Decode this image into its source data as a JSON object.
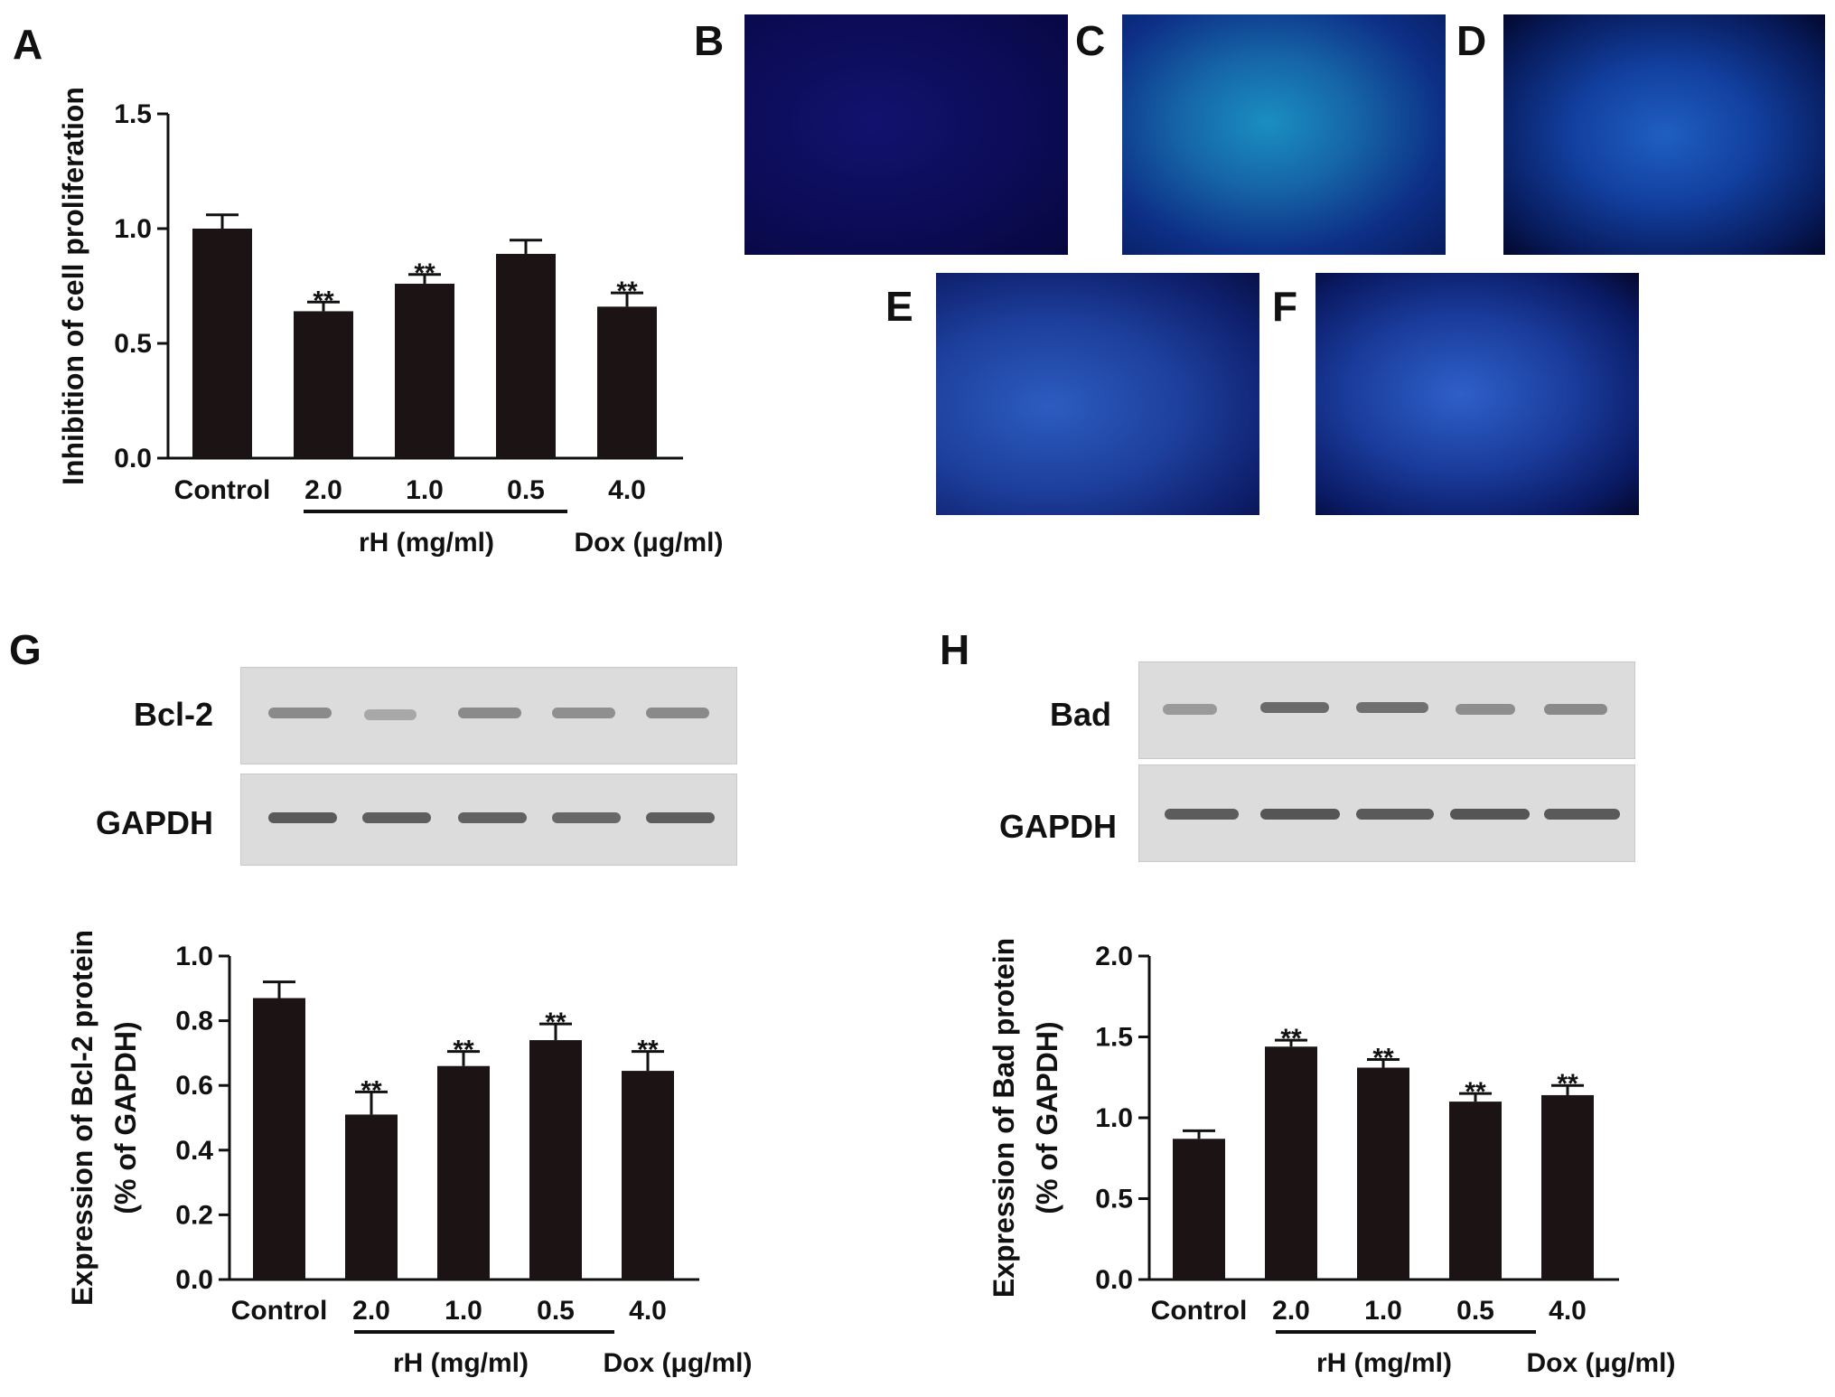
{
  "panel_letters": [
    "A",
    "B",
    "C",
    "D",
    "E",
    "F",
    "G",
    "H"
  ],
  "blots": {
    "G": {
      "top_label": "Bcl-2",
      "bottom_label": "GAPDH"
    },
    "H": {
      "top_label": "Bad",
      "bottom_label": "GAPDH"
    }
  },
  "colors": {
    "bar": "#1c1414",
    "micro_bg": "#0a0a5a"
  },
  "chart_data": [
    {
      "panel": "A",
      "type": "bar",
      "categories": [
        "Control",
        "2.0",
        "1.0",
        "0.5",
        "4.0"
      ],
      "values": [
        1.0,
        0.64,
        0.76,
        0.89,
        0.66
      ],
      "errors": [
        0.06,
        0.04,
        0.04,
        0.06,
        0.06
      ],
      "significance": [
        "",
        "**",
        "**",
        "",
        "**"
      ],
      "ylabel": "Inhibition of cell proliferation",
      "ylabel2": "",
      "ylim": [
        0,
        1.5
      ],
      "yticks": [
        "0.0",
        "0.5",
        "1.0",
        "1.5"
      ],
      "ytick_values": [
        0,
        0.5,
        1.0,
        1.5
      ],
      "group_labels": [
        "rH (mg/ml)",
        "Dox (μg/ml)"
      ]
    },
    {
      "panel": "G",
      "type": "bar",
      "categories": [
        "Control",
        "2.0",
        "1.0",
        "0.5",
        "4.0"
      ],
      "values": [
        0.87,
        0.51,
        0.66,
        0.74,
        0.645
      ],
      "errors": [
        0.05,
        0.07,
        0.045,
        0.05,
        0.06
      ],
      "significance": [
        "",
        "**",
        "**",
        "**",
        "**"
      ],
      "ylabel": "Expression of Bcl-2 protein",
      "ylabel2": "(% of GAPDH)",
      "ylim": [
        0,
        1.0
      ],
      "yticks": [
        "0.0",
        "0.2",
        "0.4",
        "0.6",
        "0.8",
        "1.0"
      ],
      "ytick_values": [
        0,
        0.2,
        0.4,
        0.6,
        0.8,
        1.0
      ],
      "group_labels": [
        "rH (mg/ml)",
        "Dox (μg/ml)"
      ]
    },
    {
      "panel": "H",
      "type": "bar",
      "categories": [
        "Control",
        "2.0",
        "1.0",
        "0.5",
        "4.0"
      ],
      "values": [
        0.87,
        1.44,
        1.31,
        1.1,
        1.14
      ],
      "errors": [
        0.05,
        0.04,
        0.05,
        0.05,
        0.06
      ],
      "significance": [
        "",
        "**",
        "**",
        "**",
        "**"
      ],
      "ylabel": "Expression of Bad protein",
      "ylabel2": "(% of GAPDH)",
      "ylim": [
        0,
        2.0
      ],
      "yticks": [
        "0.0",
        "0.5",
        "1.0",
        "1.5",
        "2.0"
      ],
      "ytick_values": [
        0,
        0.5,
        1.0,
        1.5,
        2.0
      ],
      "group_labels": [
        "rH (mg/ml)",
        "Dox (μg/ml)"
      ]
    }
  ]
}
